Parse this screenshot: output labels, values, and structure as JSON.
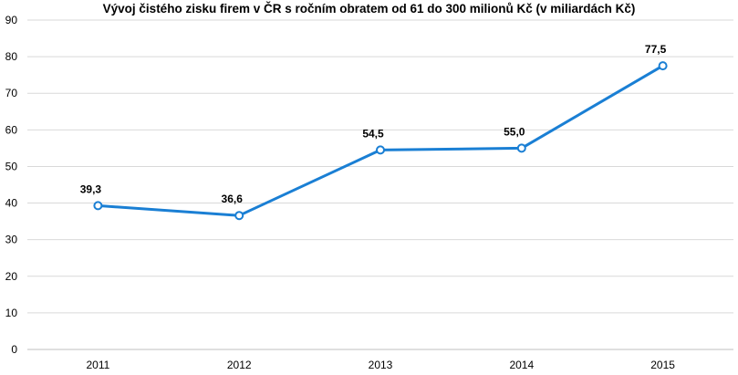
{
  "chart_data": {
    "type": "line",
    "title": "Vývoj čistého zisku firem v ČR s ročním obratem od 61 do 300 milionů Kč (v miliardách Kč)",
    "xlabel": "",
    "ylabel": "",
    "categories": [
      "2011",
      "2012",
      "2013",
      "2014",
      "2015"
    ],
    "series": [
      {
        "values": [
          39.3,
          36.6,
          54.5,
          55.0,
          77.5
        ],
        "data_labels": [
          "39,3",
          "36,6",
          "54,5",
          "55,0",
          "77,5"
        ],
        "color": "#1a7fd4"
      }
    ],
    "ylim": [
      0,
      90
    ],
    "yticks": [
      0,
      10,
      20,
      30,
      40,
      50,
      60,
      70,
      80,
      90
    ],
    "grid": true,
    "legend": "none"
  },
  "colors": {
    "line": "#1a7fd4",
    "marker_fill": "#ffffff",
    "grid": "#d9d9d9",
    "axis": "#bfbfbf"
  }
}
